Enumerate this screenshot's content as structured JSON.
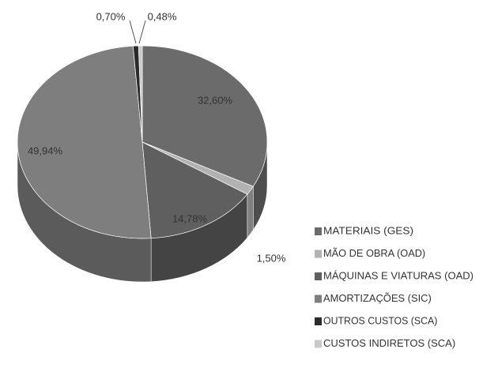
{
  "chart_data": {
    "type": "pie",
    "categories": [
      "MATERIAIS (GES)",
      "MÃO DE OBRA (OAD)",
      "MÁQUINAS E VIATURAS (OAD)",
      "AMORTIZAÇÕES (SIC)",
      "OUTROS CUSTOS (SCA)",
      "CUSTOS INDIRETOS (SCA)"
    ],
    "values": [
      32.6,
      1.5,
      14.78,
      49.94,
      0.7,
      0.48
    ],
    "value_labels": [
      "32,60%",
      "1,50%",
      "14,78%",
      "49,94%",
      "0,70%",
      "0,48%"
    ],
    "colors": [
      "#6b6b6b",
      "#b2b2b2",
      "#5f5f5f",
      "#7e7e7e",
      "#2b2b2b",
      "#c9c9c9"
    ],
    "legend": "right"
  }
}
